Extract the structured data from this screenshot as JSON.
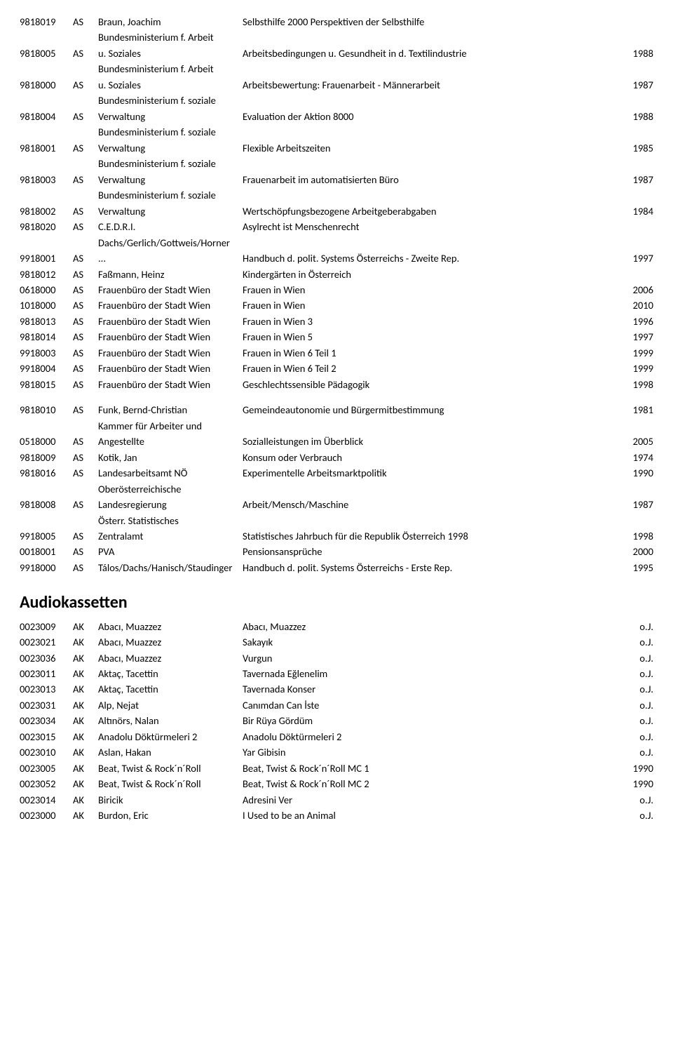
{
  "section1": {
    "rows": [
      {
        "id": "9818019",
        "type": "AS",
        "author": "Braun, Joachim",
        "title": "Selbsthilfe 2000 Perspektiven der Selbsthilfe",
        "year": ""
      },
      {
        "id": "9818005",
        "type": "AS",
        "author": "Bundesministerium f. Arbeit u. Soziales",
        "title": "Arbeitsbedingungen u. Gesundheit in d. Textilindustrie",
        "year": "1988"
      },
      {
        "id": "9818000",
        "type": "AS",
        "author": "Bundesministerium f. Arbeit u. Soziales",
        "title": "Arbeitsbewertung: Frauenarbeit - Männerarbeit",
        "year": "1987"
      },
      {
        "id": "9818004",
        "type": "AS",
        "author": "Bundesministerium f. soziale Verwaltung",
        "title": "Evaluation der Aktion 8000",
        "year": "1988"
      },
      {
        "id": "9818001",
        "type": "AS",
        "author": "Bundesministerium f. soziale Verwaltung",
        "title": "Flexible Arbeitszeiten",
        "year": "1985"
      },
      {
        "id": "9818003",
        "type": "AS",
        "author": "Bundesministerium f. soziale Verwaltung",
        "title": "Frauenarbeit im automatisierten Büro",
        "year": "1987"
      },
      {
        "id": "9818002",
        "type": "AS",
        "author": "Bundesministerium f. soziale Verwaltung",
        "title": "Wertschöpfungsbezogene Arbeitgeberabgaben",
        "year": "1984"
      },
      {
        "id": "9818020",
        "type": "AS",
        "author": "C.E.D.R.I.",
        "title": "Asylrecht ist Menschenrecht",
        "year": ""
      },
      {
        "id": "9918001",
        "type": "AS",
        "author": "Dachs/Gerlich/Gottweis/Horner ...",
        "title": "Handbuch d. polit. Systems Österreichs - Zweite Rep.",
        "year": "1997"
      },
      {
        "id": "9818012",
        "type": "AS",
        "author": "Faßmann, Heinz",
        "title": "Kindergärten in Österreich",
        "year": ""
      },
      {
        "id": "0618000",
        "type": "AS",
        "author": "Frauenbüro der Stadt Wien",
        "title": "Frauen in Wien",
        "year": "2006"
      },
      {
        "id": "1018000",
        "type": "AS",
        "author": "Frauenbüro der Stadt Wien",
        "title": "Frauen in Wien",
        "year": "2010"
      },
      {
        "id": "9818013",
        "type": "AS",
        "author": "Frauenbüro der Stadt Wien",
        "title": "Frauen in Wien 3",
        "year": "1996"
      },
      {
        "id": "9818014",
        "type": "AS",
        "author": "Frauenbüro der Stadt Wien",
        "title": "Frauen in Wien 5",
        "year": "1997"
      },
      {
        "id": "9918003",
        "type": "AS",
        "author": "Frauenbüro der Stadt Wien",
        "title": "Frauen in Wien 6 Teil 1",
        "year": "1999"
      },
      {
        "id": "9918004",
        "type": "AS",
        "author": "Frauenbüro der Stadt Wien",
        "title": "Frauen in Wien 6 Teil 2",
        "year": "1999"
      },
      {
        "id": "9818015",
        "type": "AS",
        "author": "Frauenbüro der Stadt Wien",
        "title": "Geschlechtssensible Pädagogik",
        "year": "1998"
      }
    ]
  },
  "section2": {
    "rows": [
      {
        "id": "9818010",
        "type": "AS",
        "author": "Funk, Bernd-Christian",
        "title": "Gemeindeautonomie und Bürgermitbestimmung",
        "year": "1981"
      },
      {
        "id": "0518000",
        "type": "AS",
        "author": "Kammer für Arbeiter und Angestellte",
        "title": "Sozialleistungen im Überblick",
        "year": "2005"
      },
      {
        "id": "9818009",
        "type": "AS",
        "author": "Kotik, Jan",
        "title": "Konsum oder Verbrauch",
        "year": "1974"
      },
      {
        "id": "9818016",
        "type": "AS",
        "author": "Landesarbeitsamt NÖ",
        "title": "Experimentelle Arbeitsmarktpolitik",
        "year": "1990"
      },
      {
        "id": "9818008",
        "type": "AS",
        "author": "Oberösterreichische Landesregierung",
        "title": "Arbeit/Mensch/Maschine",
        "year": "1987"
      },
      {
        "id": "9918005",
        "type": "AS",
        "author": "Österr. Statistisches Zentralamt",
        "title": "Statistisches Jahrbuch für die Republik Österreich 1998",
        "year": "1998"
      },
      {
        "id": "0018001",
        "type": "AS",
        "author": "PVA",
        "title": "Pensionsansprüche",
        "year": "2000"
      },
      {
        "id": "9918000",
        "type": "AS",
        "author": "Tálos/Dachs/Hanisch/Staudinger",
        "title": "Handbuch d. polit. Systems Österreichs - Erste Rep.",
        "year": "1995"
      }
    ]
  },
  "section3": {
    "heading": "Audiokassetten",
    "rows": [
      {
        "id": "0023009",
        "type": "AK",
        "author": "Abacı, Muazzez",
        "title": "Abacı, Muazzez",
        "year": "o.J."
      },
      {
        "id": "0023021",
        "type": "AK",
        "author": "Abacı, Muazzez",
        "title": "Sakayık",
        "year": "o.J."
      },
      {
        "id": "0023036",
        "type": "AK",
        "author": "Abacı, Muazzez",
        "title": "Vurgun",
        "year": "o.J."
      },
      {
        "id": "0023011",
        "type": "AK",
        "author": "Aktaç, Tacettin",
        "title": "Tavernada Eğlenelim",
        "year": "o.J."
      },
      {
        "id": "0023013",
        "type": "AK",
        "author": "Aktaç, Tacettin",
        "title": "Tavernada Konser",
        "year": "o.J."
      },
      {
        "id": "0023031",
        "type": "AK",
        "author": "Alp, Nejat",
        "title": "Canımdan Can İste",
        "year": "o.J."
      },
      {
        "id": "0023034",
        "type": "AK",
        "author": "Altınörs, Nalan",
        "title": "Bir Rüya Gördüm",
        "year": "o.J."
      },
      {
        "id": "0023015",
        "type": "AK",
        "author": "Anadolu Döktürmeleri 2",
        "title": "Anadolu Döktürmeleri 2",
        "year": "o.J."
      },
      {
        "id": "0023010",
        "type": "AK",
        "author": "Aslan, Hakan",
        "title": "Yar Gibisin",
        "year": "o.J."
      },
      {
        "id": "0023005",
        "type": "AK",
        "author": "Beat, Twist & Rock´n´Roll",
        "title": "Beat, Twist & Rock´n´Roll MC 1",
        "year": "1990"
      },
      {
        "id": "0023052",
        "type": "AK",
        "author": "Beat, Twist & Rock´n´Roll",
        "title": "Beat, Twist & Rock´n´Roll MC 2",
        "year": "1990"
      },
      {
        "id": "0023014",
        "type": "AK",
        "author": "Biricik",
        "title": "Adresini Ver",
        "year": "o.J."
      },
      {
        "id": "0023000",
        "type": "AK",
        "author": "Burdon, Eric",
        "title": "I Used to be an Animal",
        "year": "o.J."
      }
    ]
  }
}
